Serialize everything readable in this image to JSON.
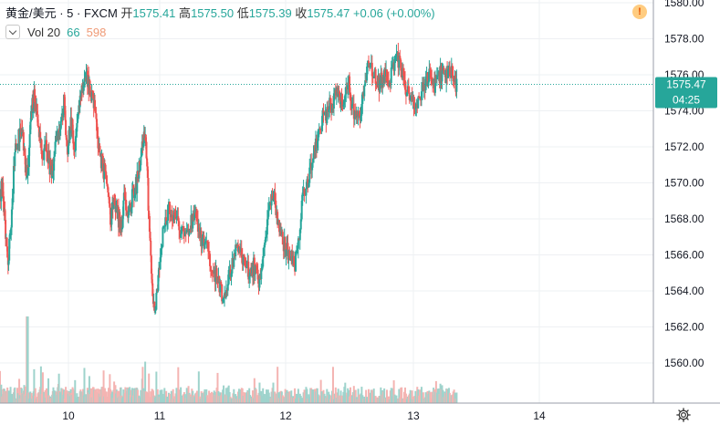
{
  "legend": {
    "symbol": "黄金/美元 · 5 · FXCM",
    "open_label": "开",
    "open": "1575.41",
    "high_label": "高",
    "high": "1575.50",
    "low_label": "低",
    "low": "1575.39",
    "close_label": "收",
    "close": "1575.47",
    "change": "+0.06 (+0.00%)"
  },
  "volume_legend": {
    "label": "Vol 20",
    "value1": "66",
    "value2": "598"
  },
  "price_tag": "1575.47",
  "countdown": "04:25",
  "alert_icon": "!",
  "icons": {
    "alert": "exclamation-circle-icon",
    "settings": "gear-icon",
    "collapse": "chevron-down-icon"
  },
  "colors": {
    "up": "#26a69a",
    "down": "#ef5350",
    "vol_up": "#9ed3cc",
    "vol_down": "#f4b4b2",
    "price_line": "#26a69a"
  },
  "chart_data": {
    "type": "candlestick",
    "title": "黄金/美元 · 5 · FXCM",
    "y_ticks": [
      "1560.00",
      "1562.00",
      "1564.00",
      "1566.00",
      "1568.00",
      "1570.00",
      "1572.00",
      "1574.00",
      "1576.00",
      "1578.00",
      "1580.00"
    ],
    "x_ticks": [
      "10",
      "11",
      "12",
      "13",
      "14"
    ],
    "ylim": [
      1558.2,
      1580.2
    ],
    "last_price": 1575.47,
    "grid": true,
    "price_path": [
      [
        0.0,
        1569.2
      ],
      [
        0.03,
        1570.0
      ],
      [
        0.06,
        1567.0
      ],
      [
        0.09,
        1565.5
      ],
      [
        0.13,
        1568.5
      ],
      [
        0.16,
        1571.5
      ],
      [
        0.2,
        1572.5
      ],
      [
        0.24,
        1573.0
      ],
      [
        0.28,
        1571.0
      ],
      [
        0.31,
        1570.5
      ],
      [
        0.34,
        1573.8
      ],
      [
        0.38,
        1575.0
      ],
      [
        0.42,
        1573.0
      ],
      [
        0.46,
        1571.5
      ],
      [
        0.5,
        1572.0
      ],
      [
        0.54,
        1571.0
      ],
      [
        0.58,
        1570.5
      ],
      [
        0.62,
        1572.5
      ],
      [
        0.66,
        1573.5
      ],
      [
        0.7,
        1574.5
      ],
      [
        0.74,
        1572.0
      ],
      [
        0.78,
        1573.5
      ],
      [
        0.82,
        1572.0
      ],
      [
        0.86,
        1574.0
      ],
      [
        0.9,
        1575.0
      ],
      [
        0.94,
        1576.2
      ],
      [
        0.97,
        1575.5
      ],
      [
        1.0,
        1575.0
      ],
      [
        1.03,
        1574.5
      ],
      [
        1.06,
        1573.0
      ],
      [
        1.09,
        1571.5
      ],
      [
        1.12,
        1571.0
      ],
      [
        1.15,
        1570.5
      ],
      [
        1.18,
        1569.5
      ],
      [
        1.21,
        1568.0
      ],
      [
        1.24,
        1568.5
      ],
      [
        1.27,
        1569.0
      ],
      [
        1.3,
        1568.0
      ],
      [
        1.33,
        1567.5
      ],
      [
        1.36,
        1569.0
      ],
      [
        1.39,
        1568.0
      ],
      [
        1.42,
        1568.5
      ],
      [
        1.46,
        1569.5
      ],
      [
        1.5,
        1570.0
      ],
      [
        1.54,
        1571.5
      ],
      [
        1.58,
        1573.0
      ],
      [
        1.61,
        1571.0
      ],
      [
        1.64,
        1567.0
      ],
      [
        1.67,
        1563.5
      ],
      [
        1.7,
        1563.0
      ],
      [
        1.74,
        1565.0
      ],
      [
        1.78,
        1567.5
      ],
      [
        1.82,
        1568.5
      ],
      [
        1.86,
        1568.0
      ],
      [
        1.9,
        1567.5
      ],
      [
        1.94,
        1567.0
      ],
      [
        1.98,
        1567.5
      ],
      [
        2.02,
        1568.0
      ],
      [
        2.06,
        1567.5
      ],
      [
        2.1,
        1566.5
      ],
      [
        2.14,
        1566.0
      ],
      [
        2.18,
        1565.0
      ],
      [
        2.22,
        1564.5
      ],
      [
        2.26,
        1563.5
      ],
      [
        2.3,
        1565.0
      ],
      [
        2.34,
        1566.0
      ],
      [
        2.38,
        1566.5
      ],
      [
        2.42,
        1565.5
      ],
      [
        2.46,
        1565.0
      ],
      [
        2.5,
        1565.5
      ],
      [
        2.54,
        1564.5
      ],
      [
        2.58,
        1566.0
      ],
      [
        2.62,
        1568.5
      ],
      [
        2.66,
        1569.0
      ],
      [
        2.7,
        1567.5
      ],
      [
        2.74,
        1566.5
      ],
      [
        2.78,
        1566.0
      ],
      [
        2.82,
        1565.5
      ],
      [
        2.86,
        1567.5
      ],
      [
        2.88,
        1569.5
      ],
      [
        2.92,
        1570.0
      ],
      [
        2.96,
        1571.5
      ],
      [
        3.0,
        1572.5
      ],
      [
        3.04,
        1573.5
      ],
      [
        3.08,
        1574.0
      ],
      [
        3.12,
        1574.5
      ],
      [
        3.16,
        1575.0
      ],
      [
        3.2,
        1574.5
      ],
      [
        3.24,
        1575.5
      ],
      [
        3.28,
        1574.0
      ],
      [
        3.32,
        1573.5
      ],
      [
        3.36,
        1575.0
      ],
      [
        3.4,
        1576.5
      ],
      [
        3.44,
        1576.0
      ],
      [
        3.48,
        1575.5
      ],
      [
        3.52,
        1576.0
      ],
      [
        3.56,
        1575.5
      ],
      [
        3.6,
        1576.5
      ],
      [
        3.64,
        1577.0
      ],
      [
        3.68,
        1575.5
      ],
      [
        3.72,
        1574.5
      ],
      [
        3.76,
        1574.0
      ],
      [
        3.8,
        1575.0
      ],
      [
        3.84,
        1575.5
      ],
      [
        3.88,
        1576.0
      ],
      [
        3.92,
        1575.5
      ],
      [
        3.96,
        1576.0
      ],
      [
        4.0,
        1575.8
      ],
      [
        4.04,
        1576.2
      ],
      [
        4.08,
        1575.5
      ],
      [
        4.1,
        1575.5
      ]
    ]
  }
}
